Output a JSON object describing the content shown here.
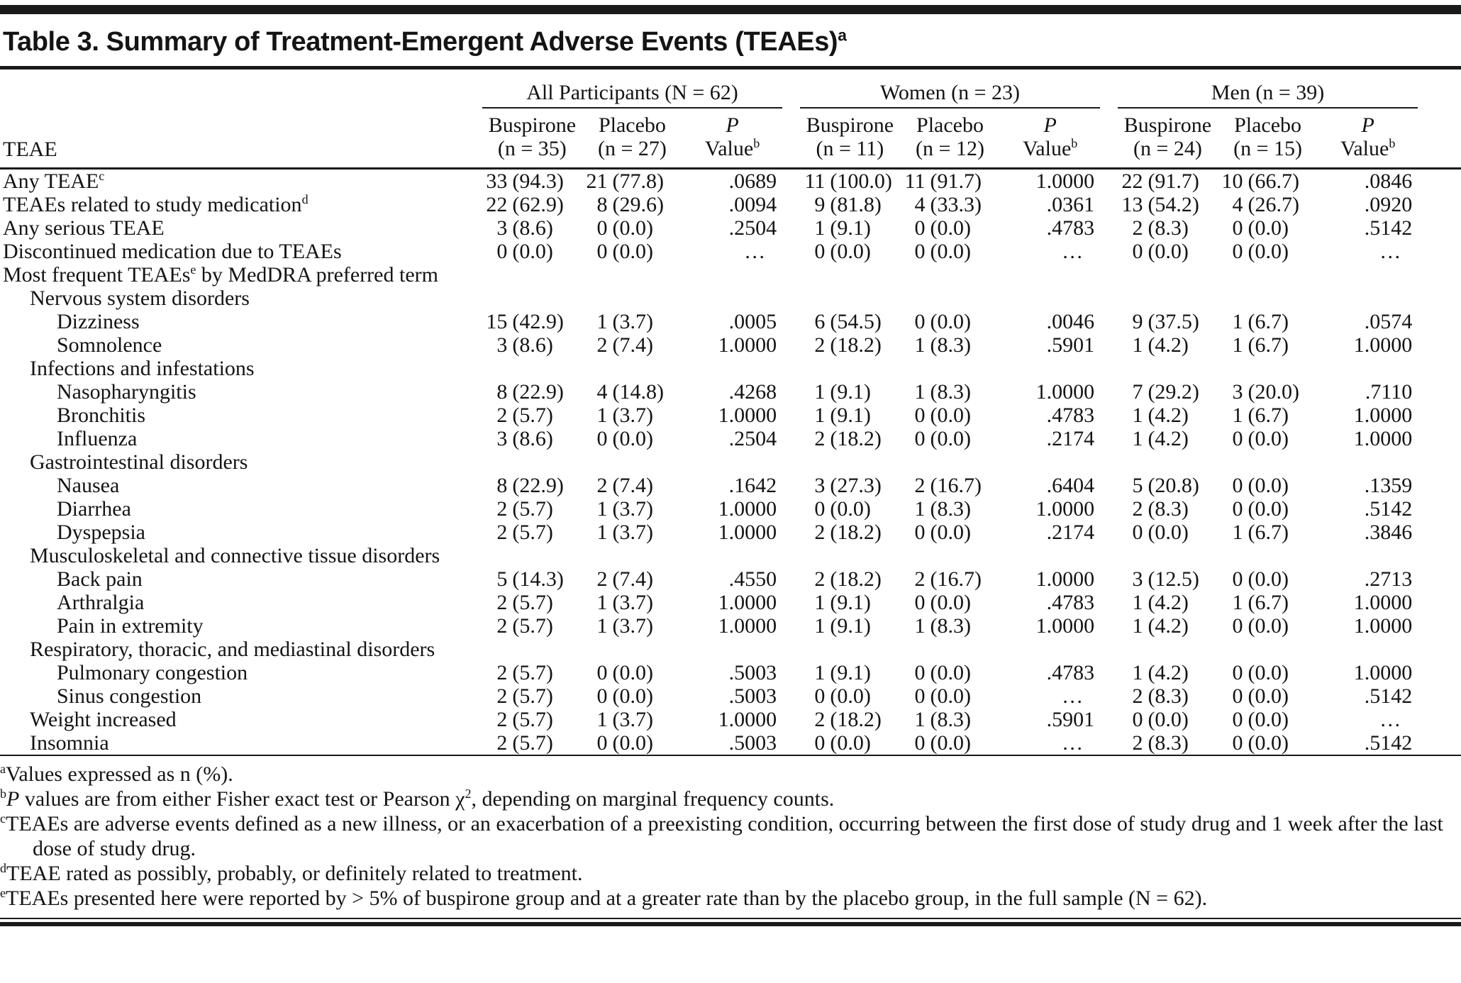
{
  "title": {
    "text": "Table 3. Summary of Treatment-Emergent Adverse Events (TEAEs)",
    "sup": "a"
  },
  "header": {
    "stub_label": "TEAE",
    "groups": [
      {
        "label": "All Participants (N = 62)",
        "columns": [
          {
            "line1": "Buspirone",
            "line2": "(n = 35)"
          },
          {
            "line1": "Placebo",
            "line2": "(n = 27)"
          },
          {
            "line1": "P",
            "line2": "Value",
            "sup": "b"
          }
        ]
      },
      {
        "label": "Women (n = 23)",
        "columns": [
          {
            "line1": "Buspirone",
            "line2": "(n = 11)"
          },
          {
            "line1": "Placebo",
            "line2": "(n = 12)"
          },
          {
            "line1": "P",
            "line2": "Value",
            "sup": "b"
          }
        ]
      },
      {
        "label": "Men (n = 39)",
        "columns": [
          {
            "line1": "Buspirone",
            "line2": "(n = 24)"
          },
          {
            "line1": "Placebo",
            "line2": "(n = 15)"
          },
          {
            "line1": "P",
            "line2": "Value",
            "sup": "b"
          }
        ]
      }
    ]
  },
  "rows": [
    {
      "indent": 0,
      "label": [
        {
          "t": "text",
          "v": "Any TEAE"
        },
        {
          "t": "sup",
          "v": "c"
        }
      ],
      "cells": [
        "33 (94.3)",
        "21 (77.8)",
        ".0689",
        "11 (100.0)",
        "11 (91.7)",
        "1.0000",
        "22 (91.7)",
        "10 (66.7)",
        ".0846"
      ]
    },
    {
      "indent": 0,
      "label": [
        {
          "t": "text",
          "v": "TEAEs related to study medication"
        },
        {
          "t": "sup",
          "v": "d"
        }
      ],
      "cells": [
        "22 (62.9)",
        "8 (29.6)",
        ".0094",
        "9 (81.8)",
        "4 (33.3)",
        ".0361",
        "13 (54.2)",
        "4 (26.7)",
        ".0920"
      ]
    },
    {
      "indent": 0,
      "label": [
        {
          "t": "text",
          "v": "Any serious TEAE"
        }
      ],
      "cells": [
        "3 (8.6)",
        "0 (0.0)",
        ".2504",
        "1 (9.1)",
        "0 (0.0)",
        ".4783",
        "2 (8.3)",
        "0 (0.0)",
        ".5142"
      ]
    },
    {
      "indent": 0,
      "label": [
        {
          "t": "text",
          "v": "Discontinued medication due to TEAEs"
        }
      ],
      "cells": [
        "0 (0.0)",
        "0 (0.0)",
        "…",
        "0 (0.0)",
        "0 (0.0)",
        "…",
        "0 (0.0)",
        "0 (0.0)",
        "…"
      ]
    },
    {
      "indent": 0,
      "label": [
        {
          "t": "text",
          "v": "Most frequent TEAEs"
        },
        {
          "t": "sup",
          "v": "e"
        },
        {
          "t": "text",
          "v": " by MedDRA preferred term"
        }
      ],
      "cells": []
    },
    {
      "indent": 1,
      "label": [
        {
          "t": "text",
          "v": "Nervous system disorders"
        }
      ],
      "cells": []
    },
    {
      "indent": 2,
      "label": [
        {
          "t": "text",
          "v": "Dizziness"
        }
      ],
      "cells": [
        "15 (42.9)",
        "1 (3.7)",
        ".0005",
        "6 (54.5)",
        "0 (0.0)",
        ".0046",
        "9 (37.5)",
        "1 (6.7)",
        ".0574"
      ]
    },
    {
      "indent": 2,
      "label": [
        {
          "t": "text",
          "v": "Somnolence"
        }
      ],
      "cells": [
        "3 (8.6)",
        "2 (7.4)",
        "1.0000",
        "2 (18.2)",
        "1 (8.3)",
        ".5901",
        "1 (4.2)",
        "1 (6.7)",
        "1.0000"
      ]
    },
    {
      "indent": 1,
      "label": [
        {
          "t": "text",
          "v": "Infections and infestations"
        }
      ],
      "cells": []
    },
    {
      "indent": 2,
      "label": [
        {
          "t": "text",
          "v": "Nasopharyngitis"
        }
      ],
      "cells": [
        "8 (22.9)",
        "4 (14.8)",
        ".4268",
        "1 (9.1)",
        "1 (8.3)",
        "1.0000",
        "7 (29.2)",
        "3 (20.0)",
        ".7110"
      ]
    },
    {
      "indent": 2,
      "label": [
        {
          "t": "text",
          "v": "Bronchitis"
        }
      ],
      "cells": [
        "2 (5.7)",
        "1 (3.7)",
        "1.0000",
        "1 (9.1)",
        "0 (0.0)",
        ".4783",
        "1 (4.2)",
        "1 (6.7)",
        "1.0000"
      ]
    },
    {
      "indent": 2,
      "label": [
        {
          "t": "text",
          "v": "Influenza"
        }
      ],
      "cells": [
        "3 (8.6)",
        "0 (0.0)",
        ".2504",
        "2 (18.2)",
        "0 (0.0)",
        ".2174",
        "1 (4.2)",
        "0 (0.0)",
        "1.0000"
      ]
    },
    {
      "indent": 1,
      "label": [
        {
          "t": "text",
          "v": "Gastrointestinal disorders"
        }
      ],
      "cells": []
    },
    {
      "indent": 2,
      "label": [
        {
          "t": "text",
          "v": "Nausea"
        }
      ],
      "cells": [
        "8 (22.9)",
        "2 (7.4)",
        ".1642",
        "3 (27.3)",
        "2 (16.7)",
        ".6404",
        "5 (20.8)",
        "0 (0.0)",
        ".1359"
      ]
    },
    {
      "indent": 2,
      "label": [
        {
          "t": "text",
          "v": "Diarrhea"
        }
      ],
      "cells": [
        "2 (5.7)",
        "1 (3.7)",
        "1.0000",
        "0 (0.0)",
        "1 (8.3)",
        "1.0000",
        "2 (8.3)",
        "0 (0.0)",
        ".5142"
      ]
    },
    {
      "indent": 2,
      "label": [
        {
          "t": "text",
          "v": "Dyspepsia"
        }
      ],
      "cells": [
        "2 (5.7)",
        "1 (3.7)",
        "1.0000",
        "2 (18.2)",
        "0 (0.0)",
        ".2174",
        "0 (0.0)",
        "1 (6.7)",
        ".3846"
      ]
    },
    {
      "indent": 1,
      "label": [
        {
          "t": "text",
          "v": "Musculoskeletal and connective tissue disorders"
        }
      ],
      "cells": []
    },
    {
      "indent": 2,
      "label": [
        {
          "t": "text",
          "v": "Back pain"
        }
      ],
      "cells": [
        "5 (14.3)",
        "2 (7.4)",
        ".4550",
        "2 (18.2)",
        "2 (16.7)",
        "1.0000",
        "3 (12.5)",
        "0 (0.0)",
        ".2713"
      ]
    },
    {
      "indent": 2,
      "label": [
        {
          "t": "text",
          "v": "Arthralgia"
        }
      ],
      "cells": [
        "2 (5.7)",
        "1 (3.7)",
        "1.0000",
        "1 (9.1)",
        "0 (0.0)",
        ".4783",
        "1 (4.2)",
        "1 (6.7)",
        "1.0000"
      ]
    },
    {
      "indent": 2,
      "label": [
        {
          "t": "text",
          "v": "Pain in extremity"
        }
      ],
      "cells": [
        "2 (5.7)",
        "1 (3.7)",
        "1.0000",
        "1 (9.1)",
        "1 (8.3)",
        "1.0000",
        "1 (4.2)",
        "0 (0.0)",
        "1.0000"
      ]
    },
    {
      "indent": 1,
      "label": [
        {
          "t": "text",
          "v": "Respiratory, thoracic, and mediastinal disorders"
        }
      ],
      "cells": []
    },
    {
      "indent": 2,
      "label": [
        {
          "t": "text",
          "v": "Pulmonary congestion"
        }
      ],
      "cells": [
        "2 (5.7)",
        "0 (0.0)",
        ".5003",
        "1 (9.1)",
        "0 (0.0)",
        ".4783",
        "1 (4.2)",
        "0 (0.0)",
        "1.0000"
      ]
    },
    {
      "indent": 2,
      "label": [
        {
          "t": "text",
          "v": "Sinus congestion"
        }
      ],
      "cells": [
        "2 (5.7)",
        "0 (0.0)",
        ".5003",
        "0 (0.0)",
        "0 (0.0)",
        "…",
        "2 (8.3)",
        "0 (0.0)",
        ".5142"
      ]
    },
    {
      "indent": 1,
      "label": [
        {
          "t": "text",
          "v": "Weight increased"
        }
      ],
      "cells": [
        "2 (5.7)",
        "1 (3.7)",
        "1.0000",
        "2 (18.2)",
        "1 (8.3)",
        ".5901",
        "0 (0.0)",
        "0 (0.0)",
        "…"
      ]
    },
    {
      "indent": 1,
      "label": [
        {
          "t": "text",
          "v": "Insomnia"
        }
      ],
      "cells": [
        "2 (5.7)",
        "0 (0.0)",
        ".5003",
        "0 (0.0)",
        "0 (0.0)",
        "…",
        "2 (8.3)",
        "0 (0.0)",
        ".5142"
      ]
    }
  ],
  "footnotes": [
    [
      {
        "t": "sup",
        "v": "a"
      },
      {
        "t": "text",
        "v": "Values expressed as n (%)."
      }
    ],
    [
      {
        "t": "sup",
        "v": "b"
      },
      {
        "t": "i",
        "v": "P"
      },
      {
        "t": "text",
        "v": " values are from either Fisher exact test or Pearson χ"
      },
      {
        "t": "sup",
        "v": "2"
      },
      {
        "t": "text",
        "v": ", depending on marginal frequency counts."
      }
    ],
    [
      {
        "t": "sup",
        "v": "c"
      },
      {
        "t": "text",
        "v": "TEAEs are adverse events defined as a new illness, or an exacerbation of a preexisting condition, occurring between the first dose of study drug and 1 week after the last dose of study drug."
      }
    ],
    [
      {
        "t": "sup",
        "v": "d"
      },
      {
        "t": "text",
        "v": "TEAE rated as possibly, probably, or definitely related to treatment."
      }
    ],
    [
      {
        "t": "sup",
        "v": "e"
      },
      {
        "t": "text",
        "v": "TEAEs presented here were reported by > 5% of buspirone group and at a greater rate than by the placebo group, in the full sample (N = 62)."
      }
    ]
  ]
}
